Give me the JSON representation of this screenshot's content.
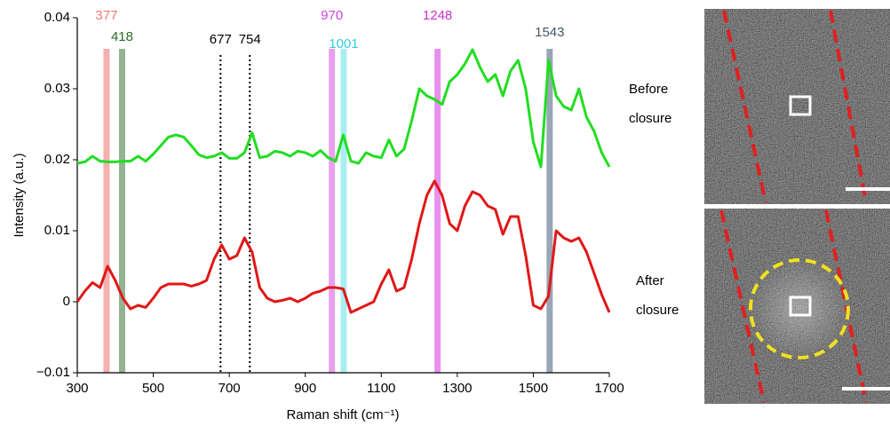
{
  "chart_data": {
    "type": "line",
    "ylabel": "Intensity (a.u.)",
    "xlabel": "Raman shift (cm⁻¹)",
    "xlim": [
      300,
      1700
    ],
    "ylim": [
      -0.01,
      0.04
    ],
    "xticks": [
      300,
      500,
      700,
      900,
      1100,
      1300,
      1500,
      1700
    ],
    "yticks": [
      0.04,
      0.03,
      0.02,
      0.01,
      0,
      {
        "value": -0.01,
        "label": "−0.01"
      }
    ],
    "x": [
      300,
      320,
      340,
      360,
      380,
      400,
      420,
      440,
      460,
      480,
      500,
      520,
      540,
      560,
      580,
      600,
      620,
      640,
      660,
      680,
      700,
      720,
      740,
      760,
      780,
      800,
      820,
      840,
      860,
      880,
      900,
      920,
      940,
      960,
      980,
      1000,
      1020,
      1040,
      1060,
      1080,
      1100,
      1120,
      1140,
      1160,
      1180,
      1200,
      1220,
      1240,
      1260,
      1280,
      1300,
      1320,
      1340,
      1360,
      1380,
      1400,
      1420,
      1440,
      1460,
      1480,
      1500,
      1520,
      1540,
      1560,
      1580,
      1600,
      1620,
      1640,
      1660,
      1680,
      1700
    ],
    "series": [
      {
        "name": "Before closure",
        "color": "#22dd22",
        "values": [
          0.0195,
          0.0197,
          0.0205,
          0.0198,
          0.0197,
          0.0197,
          0.0198,
          0.0198,
          0.0205,
          0.0198,
          0.0208,
          0.022,
          0.0232,
          0.0235,
          0.0232,
          0.022,
          0.0207,
          0.0203,
          0.0205,
          0.021,
          0.0202,
          0.0202,
          0.021,
          0.0238,
          0.0203,
          0.0205,
          0.0212,
          0.021,
          0.0205,
          0.0212,
          0.021,
          0.0205,
          0.0213,
          0.0203,
          0.0198,
          0.0235,
          0.0198,
          0.0195,
          0.021,
          0.0205,
          0.0203,
          0.0228,
          0.0205,
          0.0215,
          0.0255,
          0.03,
          0.029,
          0.0285,
          0.0278,
          0.031,
          0.032,
          0.0335,
          0.0355,
          0.033,
          0.031,
          0.032,
          0.029,
          0.0325,
          0.034,
          0.03,
          0.0225,
          0.019,
          0.034,
          0.029,
          0.0275,
          0.027,
          0.03,
          0.026,
          0.024,
          0.021,
          0.019
        ]
      },
      {
        "name": "After closure",
        "color": "#e01818",
        "values": [
          0.0,
          0.0015,
          0.0027,
          0.002,
          0.005,
          0.003,
          0.0005,
          -0.001,
          -0.0005,
          -0.0008,
          0.0005,
          0.002,
          0.0025,
          0.0025,
          0.0025,
          0.0022,
          0.0025,
          0.003,
          0.006,
          0.008,
          0.006,
          0.0065,
          0.009,
          0.007,
          0.002,
          0.0005,
          0.0,
          0.0002,
          0.0005,
          0.0,
          0.0005,
          0.0012,
          0.0015,
          0.002,
          0.002,
          0.0018,
          -0.0015,
          -0.001,
          -0.0005,
          0.0,
          0.0025,
          0.0045,
          0.0015,
          0.002,
          0.006,
          0.011,
          0.015,
          0.017,
          0.015,
          0.011,
          0.01,
          0.0135,
          0.0155,
          0.015,
          0.0135,
          0.013,
          0.0095,
          0.012,
          0.012,
          0.0065,
          -0.0005,
          -0.001,
          0.0008,
          0.01,
          0.009,
          0.0085,
          0.009,
          0.007,
          0.004,
          0.001,
          -0.0015
        ]
      }
    ],
    "markers": [
      {
        "value": 377,
        "style": "band",
        "color": "#f5b0b0",
        "label_color": "#f07878"
      },
      {
        "value": 418,
        "style": "band",
        "color": "#93b393",
        "label_color": "#2a6a2a"
      },
      {
        "value": 677,
        "style": "dotted",
        "color": "#000000",
        "label_color": "#000000"
      },
      {
        "value": 754,
        "style": "dotted",
        "color": "#000000",
        "label_color": "#000000"
      },
      {
        "value": 970,
        "style": "band",
        "color": "#e8a0ee",
        "label_color": "#cc44dd"
      },
      {
        "value": 1001,
        "style": "band",
        "color": "#a8eef2",
        "label_color": "#33ccdd"
      },
      {
        "value": 1248,
        "style": "band",
        "color": "#e890ee",
        "label_color": "#cc33cc"
      },
      {
        "value": 1543,
        "style": "band",
        "color": "#98a6b6",
        "label_color": "#445566"
      }
    ]
  }
}
